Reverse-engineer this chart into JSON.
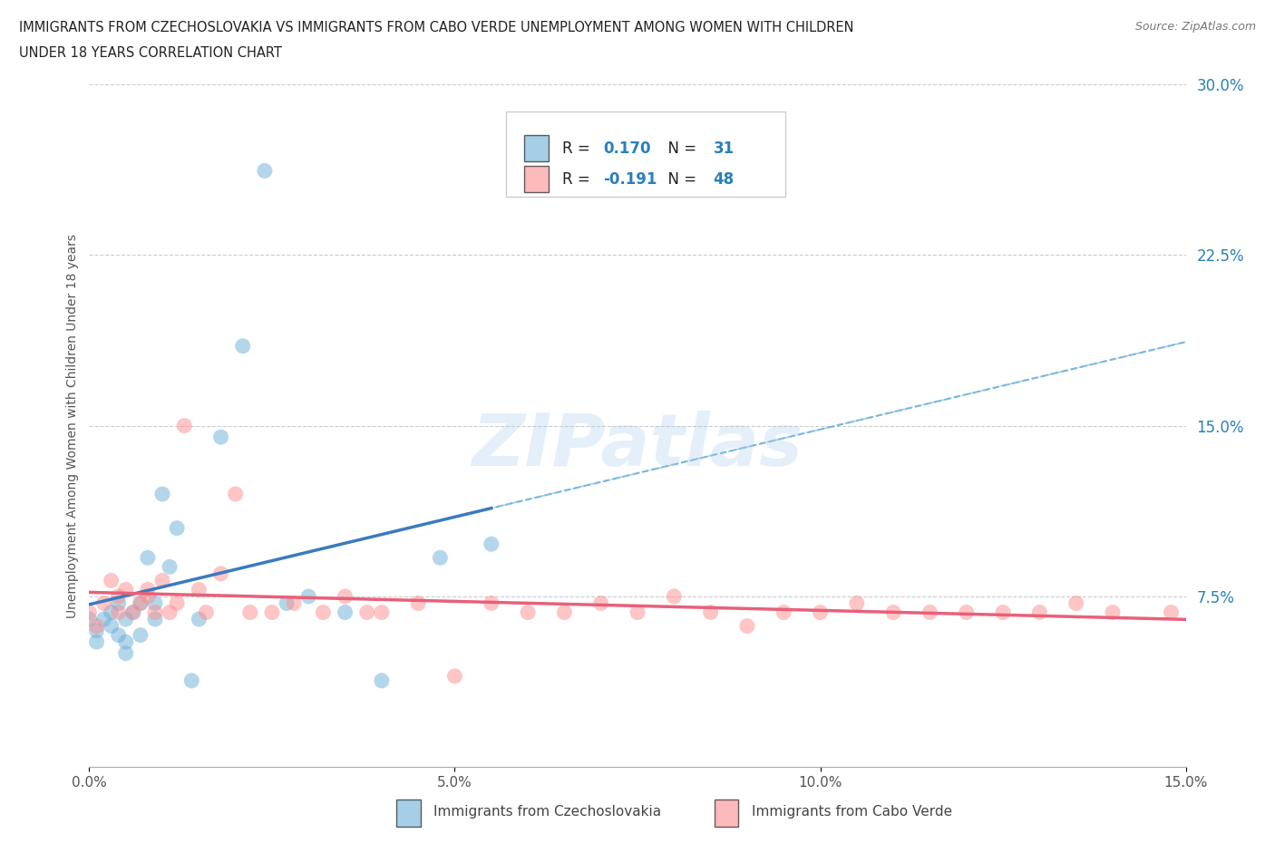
{
  "title_line1": "IMMIGRANTS FROM CZECHOSLOVAKIA VS IMMIGRANTS FROM CABO VERDE UNEMPLOYMENT AMONG WOMEN WITH CHILDREN",
  "title_line2": "UNDER 18 YEARS CORRELATION CHART",
  "source": "Source: ZipAtlas.com",
  "ylabel": "Unemployment Among Women with Children Under 18 years",
  "xlim": [
    0,
    0.15
  ],
  "ylim": [
    0,
    0.3
  ],
  "xtick_vals": [
    0.0,
    0.05,
    0.1,
    0.15
  ],
  "xtick_labels": [
    "0.0%",
    "5.0%",
    "10.0%",
    "15.0%"
  ],
  "ytick_vals": [
    0.075,
    0.15,
    0.225,
    0.3
  ],
  "ytick_labels": [
    "7.5%",
    "15.0%",
    "22.5%",
    "30.0%"
  ],
  "R_czech": 0.17,
  "N_czech": 31,
  "R_cabo": -0.191,
  "N_cabo": 48,
  "color_czech": "#6baed6",
  "color_cabo": "#fc8d8d",
  "line_color_czech": "#3a7bbf",
  "line_color_cabo": "#e8607a",
  "legend_label_czech": "Immigrants from Czechoslovakia",
  "legend_label_cabo": "Immigrants from Cabo Verde",
  "watermark": "ZIPatlas",
  "czech_x": [
    0.0,
    0.001,
    0.001,
    0.002,
    0.003,
    0.003,
    0.004,
    0.004,
    0.005,
    0.005,
    0.005,
    0.006,
    0.007,
    0.007,
    0.008,
    0.009,
    0.009,
    0.01,
    0.011,
    0.012,
    0.014,
    0.015,
    0.018,
    0.021,
    0.024,
    0.027,
    0.03,
    0.035,
    0.04,
    0.048,
    0.055
  ],
  "czech_y": [
    0.065,
    0.055,
    0.06,
    0.065,
    0.062,
    0.068,
    0.058,
    0.072,
    0.05,
    0.055,
    0.065,
    0.068,
    0.058,
    0.072,
    0.092,
    0.065,
    0.072,
    0.12,
    0.088,
    0.105,
    0.038,
    0.065,
    0.145,
    0.185,
    0.262,
    0.072,
    0.075,
    0.068,
    0.038,
    0.092,
    0.098
  ],
  "cabo_x": [
    0.0,
    0.001,
    0.002,
    0.003,
    0.004,
    0.004,
    0.005,
    0.006,
    0.007,
    0.008,
    0.008,
    0.009,
    0.01,
    0.011,
    0.012,
    0.013,
    0.015,
    0.016,
    0.018,
    0.02,
    0.022,
    0.025,
    0.028,
    0.032,
    0.035,
    0.038,
    0.04,
    0.045,
    0.05,
    0.055,
    0.06,
    0.065,
    0.07,
    0.075,
    0.08,
    0.085,
    0.09,
    0.095,
    0.1,
    0.105,
    0.11,
    0.115,
    0.12,
    0.125,
    0.13,
    0.135,
    0.14,
    0.148
  ],
  "cabo_y": [
    0.068,
    0.062,
    0.072,
    0.082,
    0.068,
    0.075,
    0.078,
    0.068,
    0.072,
    0.078,
    0.075,
    0.068,
    0.082,
    0.068,
    0.072,
    0.15,
    0.078,
    0.068,
    0.085,
    0.12,
    0.068,
    0.068,
    0.072,
    0.068,
    0.075,
    0.068,
    0.068,
    0.072,
    0.04,
    0.072,
    0.068,
    0.068,
    0.072,
    0.068,
    0.075,
    0.068,
    0.062,
    0.068,
    0.068,
    0.072,
    0.068,
    0.068,
    0.068,
    0.068,
    0.068,
    0.072,
    0.068,
    0.068
  ]
}
